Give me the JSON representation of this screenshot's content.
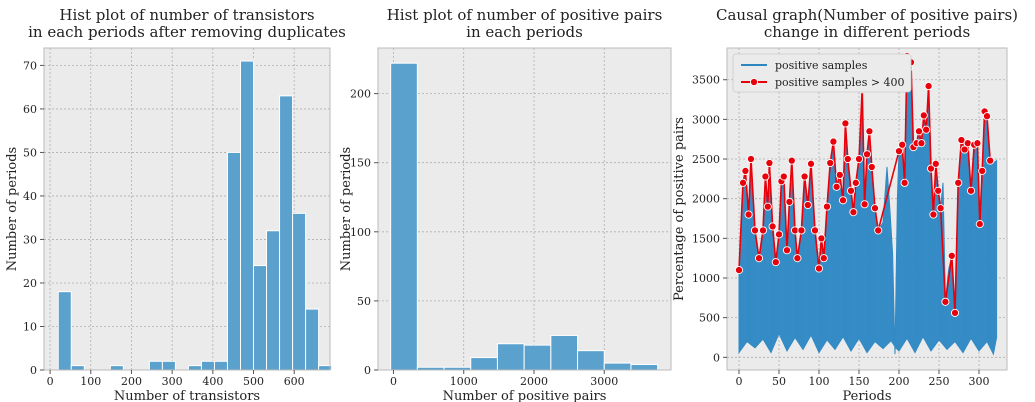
{
  "colors": {
    "hist_fill": "#5ba1cd",
    "hist_edge": "#ffffff",
    "series_blue": "#2e86c1",
    "series_red": "#e8000b",
    "axes_bg": "#ebebeb",
    "grid": "#b0b0b0"
  },
  "chart_data": [
    {
      "type": "bar",
      "title": "Hist plot of number of transistors\nin each periods after removing duplicates",
      "xlabel": "Number of transistors",
      "ylabel": "Number of periods",
      "xlim": [
        -15,
        688
      ],
      "ylim": [
        0,
        74
      ],
      "xticks": [
        0,
        100,
        200,
        300,
        400,
        500,
        600
      ],
      "yticks": [
        0,
        10,
        20,
        30,
        40,
        50,
        60,
        70
      ],
      "grid": true,
      "bins": [
        {
          "x0": 20,
          "x1": 52,
          "count": 18
        },
        {
          "x0": 52,
          "x1": 84,
          "count": 1
        },
        {
          "x0": 84,
          "x1": 116,
          "count": 0
        },
        {
          "x0": 116,
          "x1": 148,
          "count": 0
        },
        {
          "x0": 148,
          "x1": 180,
          "count": 1
        },
        {
          "x0": 180,
          "x1": 212,
          "count": 0
        },
        {
          "x0": 212,
          "x1": 244,
          "count": 0
        },
        {
          "x0": 244,
          "x1": 276,
          "count": 2
        },
        {
          "x0": 276,
          "x1": 308,
          "count": 2
        },
        {
          "x0": 308,
          "x1": 340,
          "count": 0
        },
        {
          "x0": 340,
          "x1": 372,
          "count": 1
        },
        {
          "x0": 372,
          "x1": 404,
          "count": 2
        },
        {
          "x0": 404,
          "x1": 436,
          "count": 2
        },
        {
          "x0": 436,
          "x1": 468,
          "count": 50
        },
        {
          "x0": 468,
          "x1": 500,
          "count": 71
        },
        {
          "x0": 500,
          "x1": 532,
          "count": 24
        },
        {
          "x0": 532,
          "x1": 564,
          "count": 32
        },
        {
          "x0": 564,
          "x1": 596,
          "count": 63
        },
        {
          "x0": 596,
          "x1": 628,
          "count": 36
        },
        {
          "x0": 628,
          "x1": 660,
          "count": 14
        },
        {
          "x0": 660,
          "x1": 692,
          "count": 1
        }
      ]
    },
    {
      "type": "bar",
      "title": "Hist plot of number of positive pairs\nin each periods",
      "xlabel": "Number of positive pairs",
      "ylabel": "Number of periods",
      "xlim": [
        -220,
        3950
      ],
      "ylim": [
        0,
        233
      ],
      "xticks": [
        0,
        1000,
        2000,
        3000
      ],
      "yticks": [
        0,
        50,
        100,
        150,
        200
      ],
      "grid": true,
      "bins": [
        {
          "x0": -40,
          "x1": 340,
          "count": 222
        },
        {
          "x0": 340,
          "x1": 720,
          "count": 2
        },
        {
          "x0": 720,
          "x1": 1100,
          "count": 2
        },
        {
          "x0": 1100,
          "x1": 1480,
          "count": 9
        },
        {
          "x0": 1480,
          "x1": 1860,
          "count": 19
        },
        {
          "x0": 1860,
          "x1": 2240,
          "count": 18
        },
        {
          "x0": 2240,
          "x1": 2620,
          "count": 25
        },
        {
          "x0": 2620,
          "x1": 3000,
          "count": 14
        },
        {
          "x0": 3000,
          "x1": 3380,
          "count": 5
        },
        {
          "x0": 3380,
          "x1": 3760,
          "count": 4
        }
      ]
    },
    {
      "type": "line",
      "title": "Causal graph(Number of positive pairs)\nchange in different periods",
      "xlabel": "Periods",
      "ylabel": "Percentage of positive pairs",
      "xlim": [
        -15,
        335
      ],
      "ylim": [
        -160,
        3900
      ],
      "xticks": [
        0,
        50,
        100,
        150,
        200,
        250,
        300
      ],
      "yticks": [
        0,
        500,
        1000,
        1500,
        2000,
        2500,
        3000,
        3500
      ],
      "grid": true,
      "legend_position": "top-left",
      "series": [
        {
          "name": "positive samples",
          "style": "filled-oscillating-band",
          "lower": [
            [
              0,
              60
            ],
            [
              10,
              200
            ],
            [
              20,
              120
            ],
            [
              30,
              230
            ],
            [
              40,
              60
            ],
            [
              50,
              300
            ],
            [
              60,
              80
            ],
            [
              70,
              250
            ],
            [
              80,
              100
            ],
            [
              90,
              280
            ],
            [
              100,
              60
            ],
            [
              110,
              220
            ],
            [
              120,
              100
            ],
            [
              130,
              260
            ],
            [
              140,
              80
            ],
            [
              150,
              240
            ],
            [
              160,
              60
            ],
            [
              170,
              200
            ],
            [
              180,
              110
            ],
            [
              190,
              210
            ],
            [
              196,
              120
            ],
            [
              200,
              80
            ],
            [
              210,
              240
            ],
            [
              220,
              60
            ],
            [
              230,
              260
            ],
            [
              240,
              80
            ],
            [
              250,
              220
            ],
            [
              260,
              100
            ],
            [
              270,
              200
            ],
            [
              280,
              60
            ],
            [
              290,
              240
            ],
            [
              300,
              80
            ],
            [
              310,
              200
            ],
            [
              318,
              40
            ],
            [
              322,
              250
            ]
          ],
          "upper": [
            [
              0,
              1100
            ],
            [
              5,
              2200
            ],
            [
              8,
              2350
            ],
            [
              12,
              1800
            ],
            [
              15,
              2500
            ],
            [
              20,
              1600
            ],
            [
              25,
              1250
            ],
            [
              30,
              1600
            ],
            [
              33,
              2280
            ],
            [
              36,
              1900
            ],
            [
              38,
              2450
            ],
            [
              42,
              1650
            ],
            [
              46,
              1200
            ],
            [
              50,
              1550
            ],
            [
              53,
              2220
            ],
            [
              56,
              2280
            ],
            [
              60,
              1350
            ],
            [
              63,
              1960
            ],
            [
              66,
              2480
            ],
            [
              70,
              1600
            ],
            [
              73,
              1250
            ],
            [
              78,
              1600
            ],
            [
              82,
              2280
            ],
            [
              86,
              1920
            ],
            [
              90,
              2440
            ],
            [
              95,
              1600
            ],
            [
              100,
              1120
            ],
            [
              103,
              1500
            ],
            [
              106,
              1250
            ],
            [
              110,
              1900
            ],
            [
              114,
              2450
            ],
            [
              118,
              2720
            ],
            [
              122,
              2150
            ],
            [
              126,
              2300
            ],
            [
              130,
              1980
            ],
            [
              133,
              2950
            ],
            [
              136,
              2500
            ],
            [
              140,
              2100
            ],
            [
              143,
              1830
            ],
            [
              146,
              2200
            ],
            [
              150,
              2500
            ],
            [
              154,
              3380
            ],
            [
              157,
              1930
            ],
            [
              160,
              2560
            ],
            [
              163,
              2850
            ],
            [
              166,
              2400
            ],
            [
              170,
              1880
            ],
            [
              174,
              1600
            ],
            [
              180,
              1700
            ],
            [
              185,
              2400
            ],
            [
              189,
              1800
            ],
            [
              192,
              1300
            ],
            [
              195,
              40
            ],
            [
              198,
              2000
            ],
            [
              200,
              2600
            ],
            [
              204,
              2680
            ],
            [
              207,
              2200
            ],
            [
              210,
              3800
            ],
            [
              212,
              3650
            ],
            [
              215,
              3720
            ],
            [
              218,
              2650
            ],
            [
              222,
              2700
            ],
            [
              225,
              2850
            ],
            [
              228,
              2700
            ],
            [
              231,
              3050
            ],
            [
              234,
              2870
            ],
            [
              237,
              3420
            ],
            [
              240,
              2380
            ],
            [
              243,
              1800
            ],
            [
              246,
              2440
            ],
            [
              249,
              2100
            ],
            [
              252,
              1880
            ],
            [
              255,
              2200
            ],
            [
              258,
              700
            ],
            [
              262,
              1100
            ],
            [
              266,
              1280
            ],
            [
              270,
              560
            ],
            [
              274,
              2200
            ],
            [
              278,
              2740
            ],
            [
              282,
              2620
            ],
            [
              286,
              2700
            ],
            [
              290,
              2100
            ],
            [
              294,
              2680
            ],
            [
              298,
              2700
            ],
            [
              301,
              1680
            ],
            [
              304,
              2350
            ],
            [
              307,
              3100
            ],
            [
              310,
              3040
            ],
            [
              314,
              2480
            ],
            [
              318,
              2450
            ],
            [
              322,
              2480
            ]
          ]
        },
        {
          "name": "positive samples > 400",
          "style": "line-with-markers",
          "points": [
            [
              0,
              1100
            ],
            [
              5,
              2200
            ],
            [
              8,
              2350
            ],
            [
              12,
              1800
            ],
            [
              15,
              2500
            ],
            [
              20,
              1600
            ],
            [
              25,
              1250
            ],
            [
              30,
              1600
            ],
            [
              33,
              2280
            ],
            [
              36,
              1900
            ],
            [
              38,
              2450
            ],
            [
              42,
              1650
            ],
            [
              46,
              1200
            ],
            [
              50,
              1550
            ],
            [
              53,
              2220
            ],
            [
              56,
              2280
            ],
            [
              60,
              1350
            ],
            [
              63,
              1960
            ],
            [
              66,
              2480
            ],
            [
              70,
              1600
            ],
            [
              73,
              1250
            ],
            [
              78,
              1600
            ],
            [
              82,
              2280
            ],
            [
              86,
              1920
            ],
            [
              90,
              2440
            ],
            [
              95,
              1600
            ],
            [
              100,
              1120
            ],
            [
              103,
              1500
            ],
            [
              106,
              1250
            ],
            [
              110,
              1900
            ],
            [
              114,
              2450
            ],
            [
              118,
              2720
            ],
            [
              122,
              2150
            ],
            [
              126,
              2300
            ],
            [
              130,
              1980
            ],
            [
              133,
              2950
            ],
            [
              136,
              2500
            ],
            [
              140,
              2100
            ],
            [
              143,
              1830
            ],
            [
              146,
              2200
            ],
            [
              150,
              2500
            ],
            [
              154,
              3380
            ],
            [
              157,
              1930
            ],
            [
              160,
              2560
            ],
            [
              163,
              2850
            ],
            [
              166,
              2400
            ],
            [
              170,
              1880
            ],
            [
              174,
              1600
            ],
            [
              200,
              2600
            ],
            [
              204,
              2680
            ],
            [
              207,
              2200
            ],
            [
              210,
              3800
            ],
            [
              212,
              3650
            ],
            [
              215,
              3720
            ],
            [
              218,
              2650
            ],
            [
              222,
              2700
            ],
            [
              225,
              2850
            ],
            [
              228,
              2700
            ],
            [
              231,
              3050
            ],
            [
              234,
              2870
            ],
            [
              237,
              3420
            ],
            [
              240,
              2380
            ],
            [
              243,
              1800
            ],
            [
              246,
              2440
            ],
            [
              249,
              2100
            ],
            [
              252,
              1880
            ],
            [
              258,
              700
            ],
            [
              266,
              1280
            ],
            [
              270,
              560
            ],
            [
              274,
              2200
            ],
            [
              278,
              2740
            ],
            [
              282,
              2620
            ],
            [
              286,
              2700
            ],
            [
              290,
              2100
            ],
            [
              294,
              2680
            ],
            [
              298,
              2700
            ],
            [
              301,
              1680
            ],
            [
              304,
              2350
            ],
            [
              307,
              3100
            ],
            [
              310,
              3040
            ],
            [
              314,
              2480
            ]
          ]
        }
      ]
    }
  ]
}
